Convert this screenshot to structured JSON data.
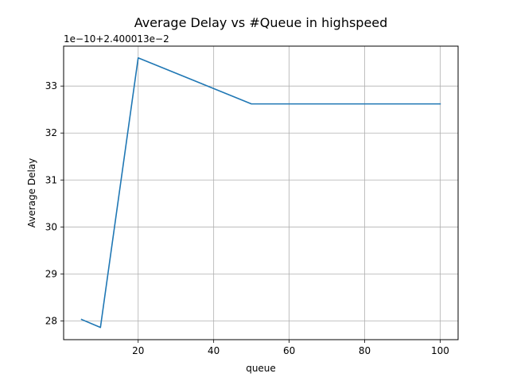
{
  "chart_data": {
    "type": "line",
    "title": "Average Delay vs #Queue in highspeed",
    "xlabel": "queue",
    "ylabel": "Average Delay",
    "offset_label": "1e−10+2.400013e−2",
    "grid": true,
    "xlim": [
      0.25,
      104.75
    ],
    "ylim": [
      27.6,
      33.85
    ],
    "xticks": [
      20,
      40,
      60,
      80,
      100
    ],
    "xtick_labels": [
      "20",
      "40",
      "60",
      "80",
      "100"
    ],
    "yticks": [
      28,
      29,
      30,
      31,
      32,
      33
    ],
    "ytick_labels": [
      "28",
      "29",
      "30",
      "31",
      "32",
      "33"
    ],
    "series": [
      {
        "color": "#1f77b4",
        "x": [
          5,
          10,
          20,
          50,
          100
        ],
        "y": [
          28.03,
          27.86,
          33.6,
          32.62,
          32.62
        ]
      }
    ]
  }
}
